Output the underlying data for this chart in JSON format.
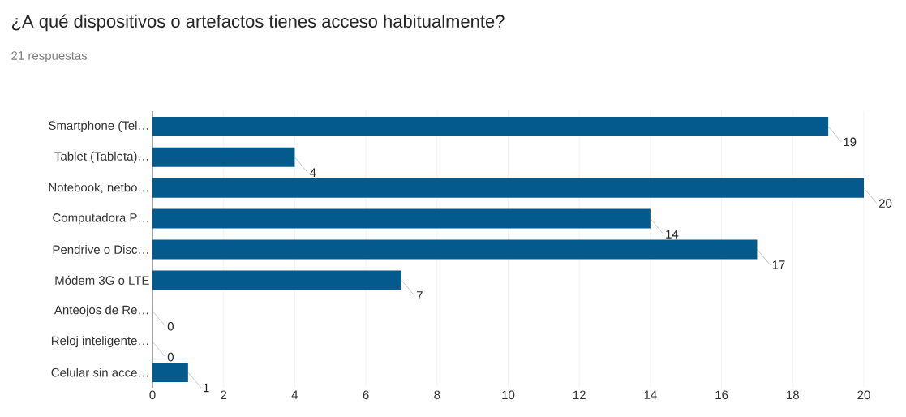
{
  "chart_data": {
    "type": "bar",
    "orientation": "horizontal",
    "title": "¿A qué dispositivos o artefactos tienes acceso habitualmente?",
    "subtitle": "21 respuestas",
    "categories": [
      "Smartphone (Tel…",
      "Tablet (Tableta)…",
      "Notebook, netbo…",
      "Computadora P…",
      "Pendrive o Disc…",
      "Módem 3G o LTE",
      "Anteojos de Re…",
      "Reloj inteligente…",
      "Celular sin acce…"
    ],
    "values": [
      19,
      4,
      20,
      14,
      17,
      7,
      0,
      0,
      1
    ],
    "color": "#045a8d",
    "xlim": [
      0,
      20
    ],
    "xticks": [
      0,
      2,
      4,
      6,
      8,
      10,
      12,
      14,
      16,
      18,
      20
    ],
    "grid": "x",
    "data_labels": true
  }
}
